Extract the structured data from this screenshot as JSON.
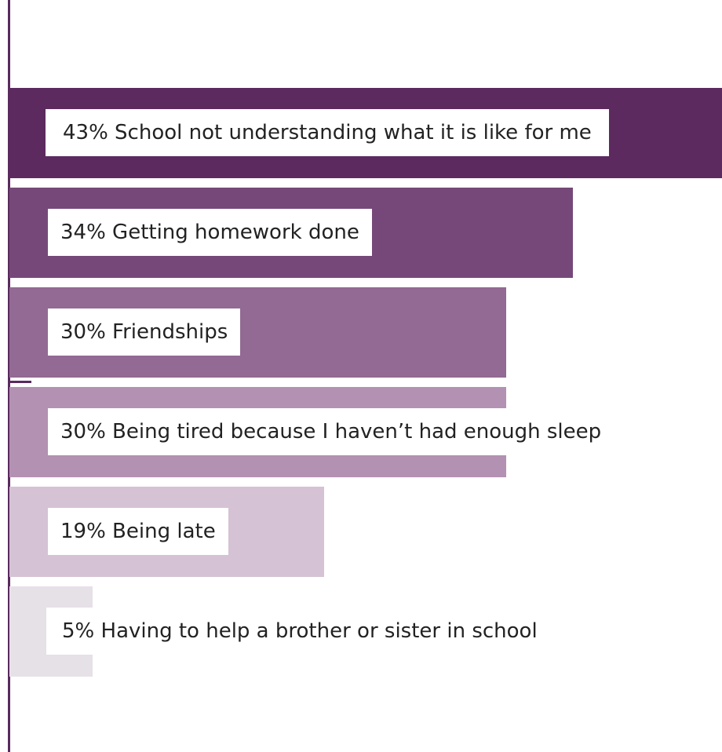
{
  "chart_data": {
    "type": "bar",
    "orientation": "horizontal",
    "categories": [
      "School not understanding what it is like for me",
      "Getting homework done",
      "Friendships",
      "Being tired because I haven’t had enough sleep",
      "Being late",
      "Having to help a brother or sister in school"
    ],
    "values": [
      43,
      34,
      30,
      30,
      19,
      5
    ],
    "labels": [
      "43% School not understanding what it is like for me",
      "34% Getting homework done",
      "30% Friendships",
      "30% Being tired because I haven’t had enough sleep",
      "19% Being late",
      "5% Having to help a brother or sister in school"
    ],
    "colors": [
      "#5c2a5f",
      "#764879",
      "#926a93",
      "#b391b2",
      "#d5c2d4",
      "#e6e0e7"
    ],
    "xlim": [
      0,
      43
    ],
    "grid": false,
    "legend": "none"
  }
}
